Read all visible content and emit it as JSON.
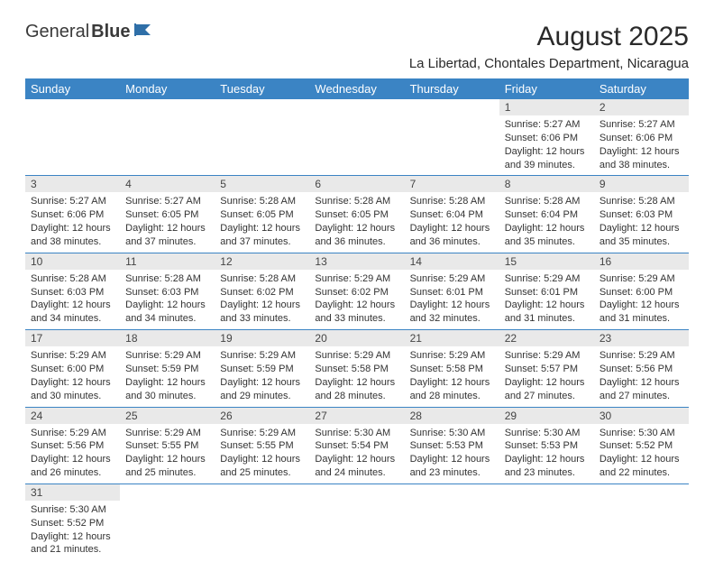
{
  "brand": {
    "part1": "General",
    "part2": "Blue"
  },
  "title": "August 2025",
  "location": "La Libertad, Chontales Department, Nicaragua",
  "colors": {
    "header_bg": "#3b84c4",
    "header_text": "#ffffff",
    "daynum_bg": "#e9e9e9",
    "border": "#3b84c4",
    "logo_flag": "#2f6fa8"
  },
  "typography": {
    "title_fontsize": 30,
    "location_fontsize": 15,
    "header_fontsize": 13,
    "cell_fontsize": 11,
    "daynum_fontsize": 12
  },
  "weekdays": [
    "Sunday",
    "Monday",
    "Tuesday",
    "Wednesday",
    "Thursday",
    "Friday",
    "Saturday"
  ],
  "weeks": [
    [
      {
        "day": "",
        "lines": []
      },
      {
        "day": "",
        "lines": []
      },
      {
        "day": "",
        "lines": []
      },
      {
        "day": "",
        "lines": []
      },
      {
        "day": "",
        "lines": []
      },
      {
        "day": "1",
        "lines": [
          "Sunrise: 5:27 AM",
          "Sunset: 6:06 PM",
          "Daylight: 12 hours",
          "and 39 minutes."
        ]
      },
      {
        "day": "2",
        "lines": [
          "Sunrise: 5:27 AM",
          "Sunset: 6:06 PM",
          "Daylight: 12 hours",
          "and 38 minutes."
        ]
      }
    ],
    [
      {
        "day": "3",
        "lines": [
          "Sunrise: 5:27 AM",
          "Sunset: 6:06 PM",
          "Daylight: 12 hours",
          "and 38 minutes."
        ]
      },
      {
        "day": "4",
        "lines": [
          "Sunrise: 5:27 AM",
          "Sunset: 6:05 PM",
          "Daylight: 12 hours",
          "and 37 minutes."
        ]
      },
      {
        "day": "5",
        "lines": [
          "Sunrise: 5:28 AM",
          "Sunset: 6:05 PM",
          "Daylight: 12 hours",
          "and 37 minutes."
        ]
      },
      {
        "day": "6",
        "lines": [
          "Sunrise: 5:28 AM",
          "Sunset: 6:05 PM",
          "Daylight: 12 hours",
          "and 36 minutes."
        ]
      },
      {
        "day": "7",
        "lines": [
          "Sunrise: 5:28 AM",
          "Sunset: 6:04 PM",
          "Daylight: 12 hours",
          "and 36 minutes."
        ]
      },
      {
        "day": "8",
        "lines": [
          "Sunrise: 5:28 AM",
          "Sunset: 6:04 PM",
          "Daylight: 12 hours",
          "and 35 minutes."
        ]
      },
      {
        "day": "9",
        "lines": [
          "Sunrise: 5:28 AM",
          "Sunset: 6:03 PM",
          "Daylight: 12 hours",
          "and 35 minutes."
        ]
      }
    ],
    [
      {
        "day": "10",
        "lines": [
          "Sunrise: 5:28 AM",
          "Sunset: 6:03 PM",
          "Daylight: 12 hours",
          "and 34 minutes."
        ]
      },
      {
        "day": "11",
        "lines": [
          "Sunrise: 5:28 AM",
          "Sunset: 6:03 PM",
          "Daylight: 12 hours",
          "and 34 minutes."
        ]
      },
      {
        "day": "12",
        "lines": [
          "Sunrise: 5:28 AM",
          "Sunset: 6:02 PM",
          "Daylight: 12 hours",
          "and 33 minutes."
        ]
      },
      {
        "day": "13",
        "lines": [
          "Sunrise: 5:29 AM",
          "Sunset: 6:02 PM",
          "Daylight: 12 hours",
          "and 33 minutes."
        ]
      },
      {
        "day": "14",
        "lines": [
          "Sunrise: 5:29 AM",
          "Sunset: 6:01 PM",
          "Daylight: 12 hours",
          "and 32 minutes."
        ]
      },
      {
        "day": "15",
        "lines": [
          "Sunrise: 5:29 AM",
          "Sunset: 6:01 PM",
          "Daylight: 12 hours",
          "and 31 minutes."
        ]
      },
      {
        "day": "16",
        "lines": [
          "Sunrise: 5:29 AM",
          "Sunset: 6:00 PM",
          "Daylight: 12 hours",
          "and 31 minutes."
        ]
      }
    ],
    [
      {
        "day": "17",
        "lines": [
          "Sunrise: 5:29 AM",
          "Sunset: 6:00 PM",
          "Daylight: 12 hours",
          "and 30 minutes."
        ]
      },
      {
        "day": "18",
        "lines": [
          "Sunrise: 5:29 AM",
          "Sunset: 5:59 PM",
          "Daylight: 12 hours",
          "and 30 minutes."
        ]
      },
      {
        "day": "19",
        "lines": [
          "Sunrise: 5:29 AM",
          "Sunset: 5:59 PM",
          "Daylight: 12 hours",
          "and 29 minutes."
        ]
      },
      {
        "day": "20",
        "lines": [
          "Sunrise: 5:29 AM",
          "Sunset: 5:58 PM",
          "Daylight: 12 hours",
          "and 28 minutes."
        ]
      },
      {
        "day": "21",
        "lines": [
          "Sunrise: 5:29 AM",
          "Sunset: 5:58 PM",
          "Daylight: 12 hours",
          "and 28 minutes."
        ]
      },
      {
        "day": "22",
        "lines": [
          "Sunrise: 5:29 AM",
          "Sunset: 5:57 PM",
          "Daylight: 12 hours",
          "and 27 minutes."
        ]
      },
      {
        "day": "23",
        "lines": [
          "Sunrise: 5:29 AM",
          "Sunset: 5:56 PM",
          "Daylight: 12 hours",
          "and 27 minutes."
        ]
      }
    ],
    [
      {
        "day": "24",
        "lines": [
          "Sunrise: 5:29 AM",
          "Sunset: 5:56 PM",
          "Daylight: 12 hours",
          "and 26 minutes."
        ]
      },
      {
        "day": "25",
        "lines": [
          "Sunrise: 5:29 AM",
          "Sunset: 5:55 PM",
          "Daylight: 12 hours",
          "and 25 minutes."
        ]
      },
      {
        "day": "26",
        "lines": [
          "Sunrise: 5:29 AM",
          "Sunset: 5:55 PM",
          "Daylight: 12 hours",
          "and 25 minutes."
        ]
      },
      {
        "day": "27",
        "lines": [
          "Sunrise: 5:30 AM",
          "Sunset: 5:54 PM",
          "Daylight: 12 hours",
          "and 24 minutes."
        ]
      },
      {
        "day": "28",
        "lines": [
          "Sunrise: 5:30 AM",
          "Sunset: 5:53 PM",
          "Daylight: 12 hours",
          "and 23 minutes."
        ]
      },
      {
        "day": "29",
        "lines": [
          "Sunrise: 5:30 AM",
          "Sunset: 5:53 PM",
          "Daylight: 12 hours",
          "and 23 minutes."
        ]
      },
      {
        "day": "30",
        "lines": [
          "Sunrise: 5:30 AM",
          "Sunset: 5:52 PM",
          "Daylight: 12 hours",
          "and 22 minutes."
        ]
      }
    ],
    [
      {
        "day": "31",
        "lines": [
          "Sunrise: 5:30 AM",
          "Sunset: 5:52 PM",
          "Daylight: 12 hours",
          "and 21 minutes."
        ]
      },
      {
        "day": "",
        "lines": []
      },
      {
        "day": "",
        "lines": []
      },
      {
        "day": "",
        "lines": []
      },
      {
        "day": "",
        "lines": []
      },
      {
        "day": "",
        "lines": []
      },
      {
        "day": "",
        "lines": []
      }
    ]
  ]
}
